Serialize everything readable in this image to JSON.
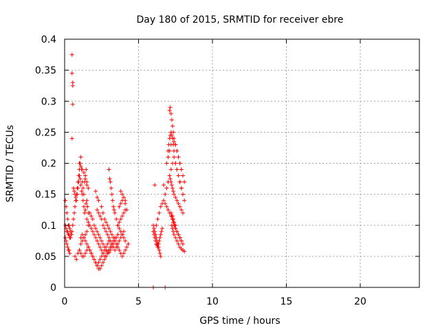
{
  "chart_data": {
    "type": "scatter",
    "title": "Day 180 of 2015, SRMTID for receiver ebre",
    "xlabel": "GPS time / hours",
    "ylabel": "SRMTID / TECUs",
    "xlim": [
      0,
      24
    ],
    "ylim": [
      0,
      0.4
    ],
    "x_ticks": [
      "0",
      "5",
      "10",
      "15",
      "20"
    ],
    "y_ticks": [
      "0",
      "0.05",
      "0.1",
      "0.15",
      "0.2",
      "0.25",
      "0.3",
      "0.35",
      "0.4"
    ],
    "grid": true,
    "marker": "plus",
    "colors": {
      "points": "#ff0000",
      "grid": "#a0a0a0",
      "axes": "#000000"
    },
    "series": [
      {
        "x": [
          0.5,
          0.5,
          0.55,
          0.55,
          0.55,
          0.5,
          0.05,
          0.1,
          0.15,
          0.2,
          0.25,
          0.3,
          0.35,
          0.4,
          0.45,
          0.05,
          0.1,
          0.15,
          0.2,
          0.25,
          0.3,
          0.35,
          0.05,
          0.1,
          0.15,
          0.2,
          0.25,
          0.3,
          0.35,
          0.4,
          0.45,
          0.5,
          0.55,
          0.6,
          0.65,
          0.7,
          0.75,
          0.8,
          0.85,
          0.9,
          0.95,
          1.0,
          1.05,
          1.1,
          1.15,
          1.2,
          1.25,
          1.3,
          1.35,
          1.4,
          1.45,
          1.5,
          0.6,
          0.65,
          0.7,
          0.75,
          0.8,
          0.85,
          0.9,
          0.95,
          1.0,
          1.05,
          1.1,
          1.15,
          1.2,
          1.25,
          1.3,
          1.35,
          1.4,
          1.45,
          1.5,
          1.55,
          1.6,
          0.7,
          0.8,
          0.9,
          1.0,
          1.1,
          1.2,
          1.3,
          1.4,
          1.5,
          1.6,
          1.0,
          1.1,
          1.2,
          1.3,
          1.4,
          1.5,
          1.6,
          1.7,
          1.8,
          1.9,
          2.0,
          2.1,
          2.2,
          2.3,
          2.4,
          2.5,
          2.6,
          2.7,
          2.8,
          2.9,
          3.0,
          1.1,
          1.2,
          1.3,
          1.4,
          1.5,
          1.6,
          1.7,
          1.8,
          1.9,
          2.0,
          2.1,
          2.2,
          2.3,
          2.4,
          2.5,
          2.6,
          2.7,
          2.8,
          2.9,
          3.0,
          3.1,
          3.2,
          1.5,
          1.6,
          1.7,
          1.8,
          1.9,
          2.0,
          2.1,
          2.2,
          2.3,
          2.4,
          2.5,
          2.6,
          2.7,
          2.8,
          2.9,
          3.0,
          3.1,
          3.2,
          3.3,
          3.4,
          1.7,
          1.8,
          1.9,
          2.0,
          2.1,
          2.2,
          2.3,
          2.4,
          2.5,
          2.6,
          2.7,
          2.8,
          2.9,
          3.0,
          3.1,
          3.2,
          3.3,
          3.4,
          3.5,
          3.6,
          2.2,
          2.3,
          2.4,
          2.5,
          2.6,
          2.7,
          2.8,
          2.9,
          3.0,
          3.1,
          3.2,
          3.3,
          3.4,
          3.5,
          3.6,
          3.7,
          3.8,
          3.9,
          4.0,
          3.0,
          3.05,
          3.1,
          3.15,
          3.2,
          3.25,
          3.3,
          3.35,
          3.4,
          3.5,
          3.6,
          3.7,
          3.8,
          3.9,
          4.0,
          4.1,
          3.6,
          3.7,
          3.8,
          3.9,
          4.0,
          4.1,
          3.7,
          3.8,
          3.9,
          4.0,
          4.1,
          4.2,
          3.8,
          3.9,
          4.0,
          4.1,
          1.0,
          1.1,
          1.2,
          1.3,
          1.4,
          1.5,
          1.6,
          2.1,
          2.2,
          2.3,
          2.5,
          2.6,
          2.7,
          2.8,
          2.9,
          3.0,
          3.1,
          3.2,
          3.3,
          3.4,
          3.5,
          3.6,
          3.7,
          3.8,
          3.9,
          4.0,
          4.1,
          4.2,
          4.3,
          6.0,
          6.8,
          6.0,
          6.05,
          6.1,
          6.15,
          6.2,
          6.25,
          6.3,
          6.35,
          6.4,
          6.45,
          6.5,
          6.0,
          6.05,
          6.1,
          6.15,
          6.2,
          6.25,
          6.3,
          6.35,
          6.4,
          6.45,
          6.5,
          6.55,
          6.6,
          6.2,
          6.3,
          6.4,
          6.5,
          6.6,
          6.7,
          6.8,
          6.9,
          7.0,
          7.1,
          7.2,
          7.3,
          7.4,
          7.5,
          6.8,
          6.9,
          7.0,
          7.1,
          7.2,
          7.3,
          7.4,
          7.5,
          7.6,
          7.7,
          7.8,
          7.9,
          8.0,
          6.9,
          7.0,
          7.1,
          7.2,
          7.3,
          7.4,
          7.5,
          7.6,
          7.7,
          7.8,
          7.9,
          8.0,
          8.1,
          7.0,
          7.05,
          7.1,
          7.15,
          7.2,
          7.25,
          7.3,
          7.35,
          7.4,
          7.5,
          7.6,
          7.7,
          7.8,
          7.9,
          8.0,
          8.1,
          7.1,
          7.15,
          7.2,
          7.25,
          7.3,
          7.35,
          7.4,
          7.5,
          7.6,
          7.7,
          7.8,
          7.9,
          8.0,
          7.15,
          7.2,
          7.25,
          7.3,
          7.35,
          7.4,
          7.5,
          7.6,
          7.7,
          7.8,
          7.9,
          8.0,
          7.2,
          7.25,
          7.3,
          7.35,
          7.4,
          7.5,
          7.6,
          7.7,
          7.8,
          7.9,
          7.25,
          7.3,
          7.35,
          7.4,
          7.5,
          7.6,
          7.7,
          7.8,
          7.9,
          8.0,
          8.1,
          7.3,
          7.35,
          7.4,
          7.45,
          7.5,
          7.6,
          7.7,
          7.8,
          7.9,
          8.0,
          6.1,
          6.7
        ],
        "y": [
          0.375,
          0.345,
          0.33,
          0.325,
          0.295,
          0.24,
          0.14,
          0.13,
          0.12,
          0.11,
          0.1,
          0.1,
          0.095,
          0.09,
          0.085,
          0.08,
          0.075,
          0.07,
          0.065,
          0.06,
          0.06,
          0.055,
          0.1,
          0.095,
          0.09,
          0.09,
          0.085,
          0.085,
          0.08,
          0.08,
          0.085,
          0.09,
          0.1,
          0.11,
          0.12,
          0.13,
          0.14,
          0.15,
          0.16,
          0.17,
          0.18,
          0.19,
          0.2,
          0.21,
          0.19,
          0.17,
          0.16,
          0.15,
          0.17,
          0.18,
          0.19,
          0.17,
          0.16,
          0.155,
          0.15,
          0.145,
          0.14,
          0.15,
          0.16,
          0.17,
          0.18,
          0.175,
          0.165,
          0.155,
          0.15,
          0.14,
          0.13,
          0.12,
          0.125,
          0.135,
          0.14,
          0.13,
          0.12,
          0.05,
          0.045,
          0.055,
          0.06,
          0.07,
          0.075,
          0.08,
          0.085,
          0.09,
          0.1,
          0.06,
          0.055,
          0.05,
          0.05,
          0.055,
          0.06,
          0.065,
          0.06,
          0.055,
          0.05,
          0.045,
          0.04,
          0.035,
          0.04,
          0.045,
          0.05,
          0.055,
          0.06,
          0.065,
          0.07,
          0.075,
          0.08,
          0.085,
          0.08,
          0.075,
          0.07,
          0.065,
          0.06,
          0.055,
          0.05,
          0.045,
          0.04,
          0.035,
          0.03,
          0.03,
          0.035,
          0.04,
          0.045,
          0.05,
          0.055,
          0.06,
          0.065,
          0.07,
          0.11,
          0.105,
          0.1,
          0.095,
          0.09,
          0.085,
          0.08,
          0.075,
          0.07,
          0.065,
          0.06,
          0.055,
          0.05,
          0.05,
          0.055,
          0.06,
          0.065,
          0.07,
          0.075,
          0.08,
          0.12,
          0.115,
          0.11,
          0.1,
          0.095,
          0.09,
          0.085,
          0.08,
          0.075,
          0.07,
          0.065,
          0.06,
          0.058,
          0.056,
          0.06,
          0.065,
          0.07,
          0.075,
          0.08,
          0.085,
          0.125,
          0.12,
          0.115,
          0.11,
          0.1,
          0.095,
          0.09,
          0.085,
          0.08,
          0.075,
          0.07,
          0.065,
          0.06,
          0.065,
          0.07,
          0.075,
          0.08,
          0.085,
          0.09,
          0.19,
          0.175,
          0.17,
          0.16,
          0.15,
          0.14,
          0.13,
          0.125,
          0.12,
          0.11,
          0.1,
          0.095,
          0.09,
          0.085,
          0.08,
          0.075,
          0.1,
          0.105,
          0.11,
          0.115,
          0.12,
          0.125,
          0.13,
          0.135,
          0.14,
          0.145,
          0.135,
          0.125,
          0.155,
          0.15,
          0.145,
          0.14,
          0.2,
          0.195,
          0.19,
          0.185,
          0.175,
          0.165,
          0.16,
          0.155,
          0.145,
          0.14,
          0.13,
          0.12,
          0.11,
          0.105,
          0.1,
          0.095,
          0.09,
          0.085,
          0.08,
          0.075,
          0.07,
          0.065,
          0.06,
          0.055,
          0.05,
          0.055,
          0.06,
          0.065,
          0.07,
          0.0,
          0.0,
          0.1,
          0.095,
          0.09,
          0.085,
          0.08,
          0.075,
          0.07,
          0.065,
          0.06,
          0.055,
          0.05,
          0.09,
          0.085,
          0.08,
          0.075,
          0.07,
          0.068,
          0.065,
          0.07,
          0.075,
          0.08,
          0.085,
          0.09,
          0.095,
          0.1,
          0.11,
          0.12,
          0.13,
          0.135,
          0.14,
          0.135,
          0.13,
          0.125,
          0.12,
          0.115,
          0.11,
          0.105,
          0.1,
          0.15,
          0.16,
          0.17,
          0.18,
          0.19,
          0.2,
          0.21,
          0.2,
          0.19,
          0.18,
          0.17,
          0.16,
          0.15,
          0.2,
          0.21,
          0.22,
          0.23,
          0.24,
          0.235,
          0.23,
          0.22,
          0.21,
          0.2,
          0.19,
          0.18,
          0.17,
          0.22,
          0.23,
          0.24,
          0.245,
          0.25,
          0.245,
          0.24,
          0.23,
          0.22,
          0.2,
          0.19,
          0.18,
          0.17,
          0.16,
          0.15,
          0.14,
          0.285,
          0.29,
          0.28,
          0.27,
          0.26,
          0.25,
          0.24,
          0.23,
          0.22,
          0.21,
          0.2,
          0.19,
          0.18,
          0.175,
          0.17,
          0.165,
          0.16,
          0.155,
          0.15,
          0.145,
          0.14,
          0.135,
          0.13,
          0.125,
          0.12,
          0.12,
          0.115,
          0.11,
          0.105,
          0.1,
          0.095,
          0.09,
          0.085,
          0.08,
          0.075,
          0.1,
          0.095,
          0.09,
          0.085,
          0.08,
          0.075,
          0.07,
          0.065,
          0.062,
          0.06,
          0.058,
          0.115,
          0.11,
          0.105,
          0.1,
          0.095,
          0.09,
          0.085,
          0.08,
          0.075,
          0.07,
          0.165,
          0.165
        ]
      }
    ]
  }
}
